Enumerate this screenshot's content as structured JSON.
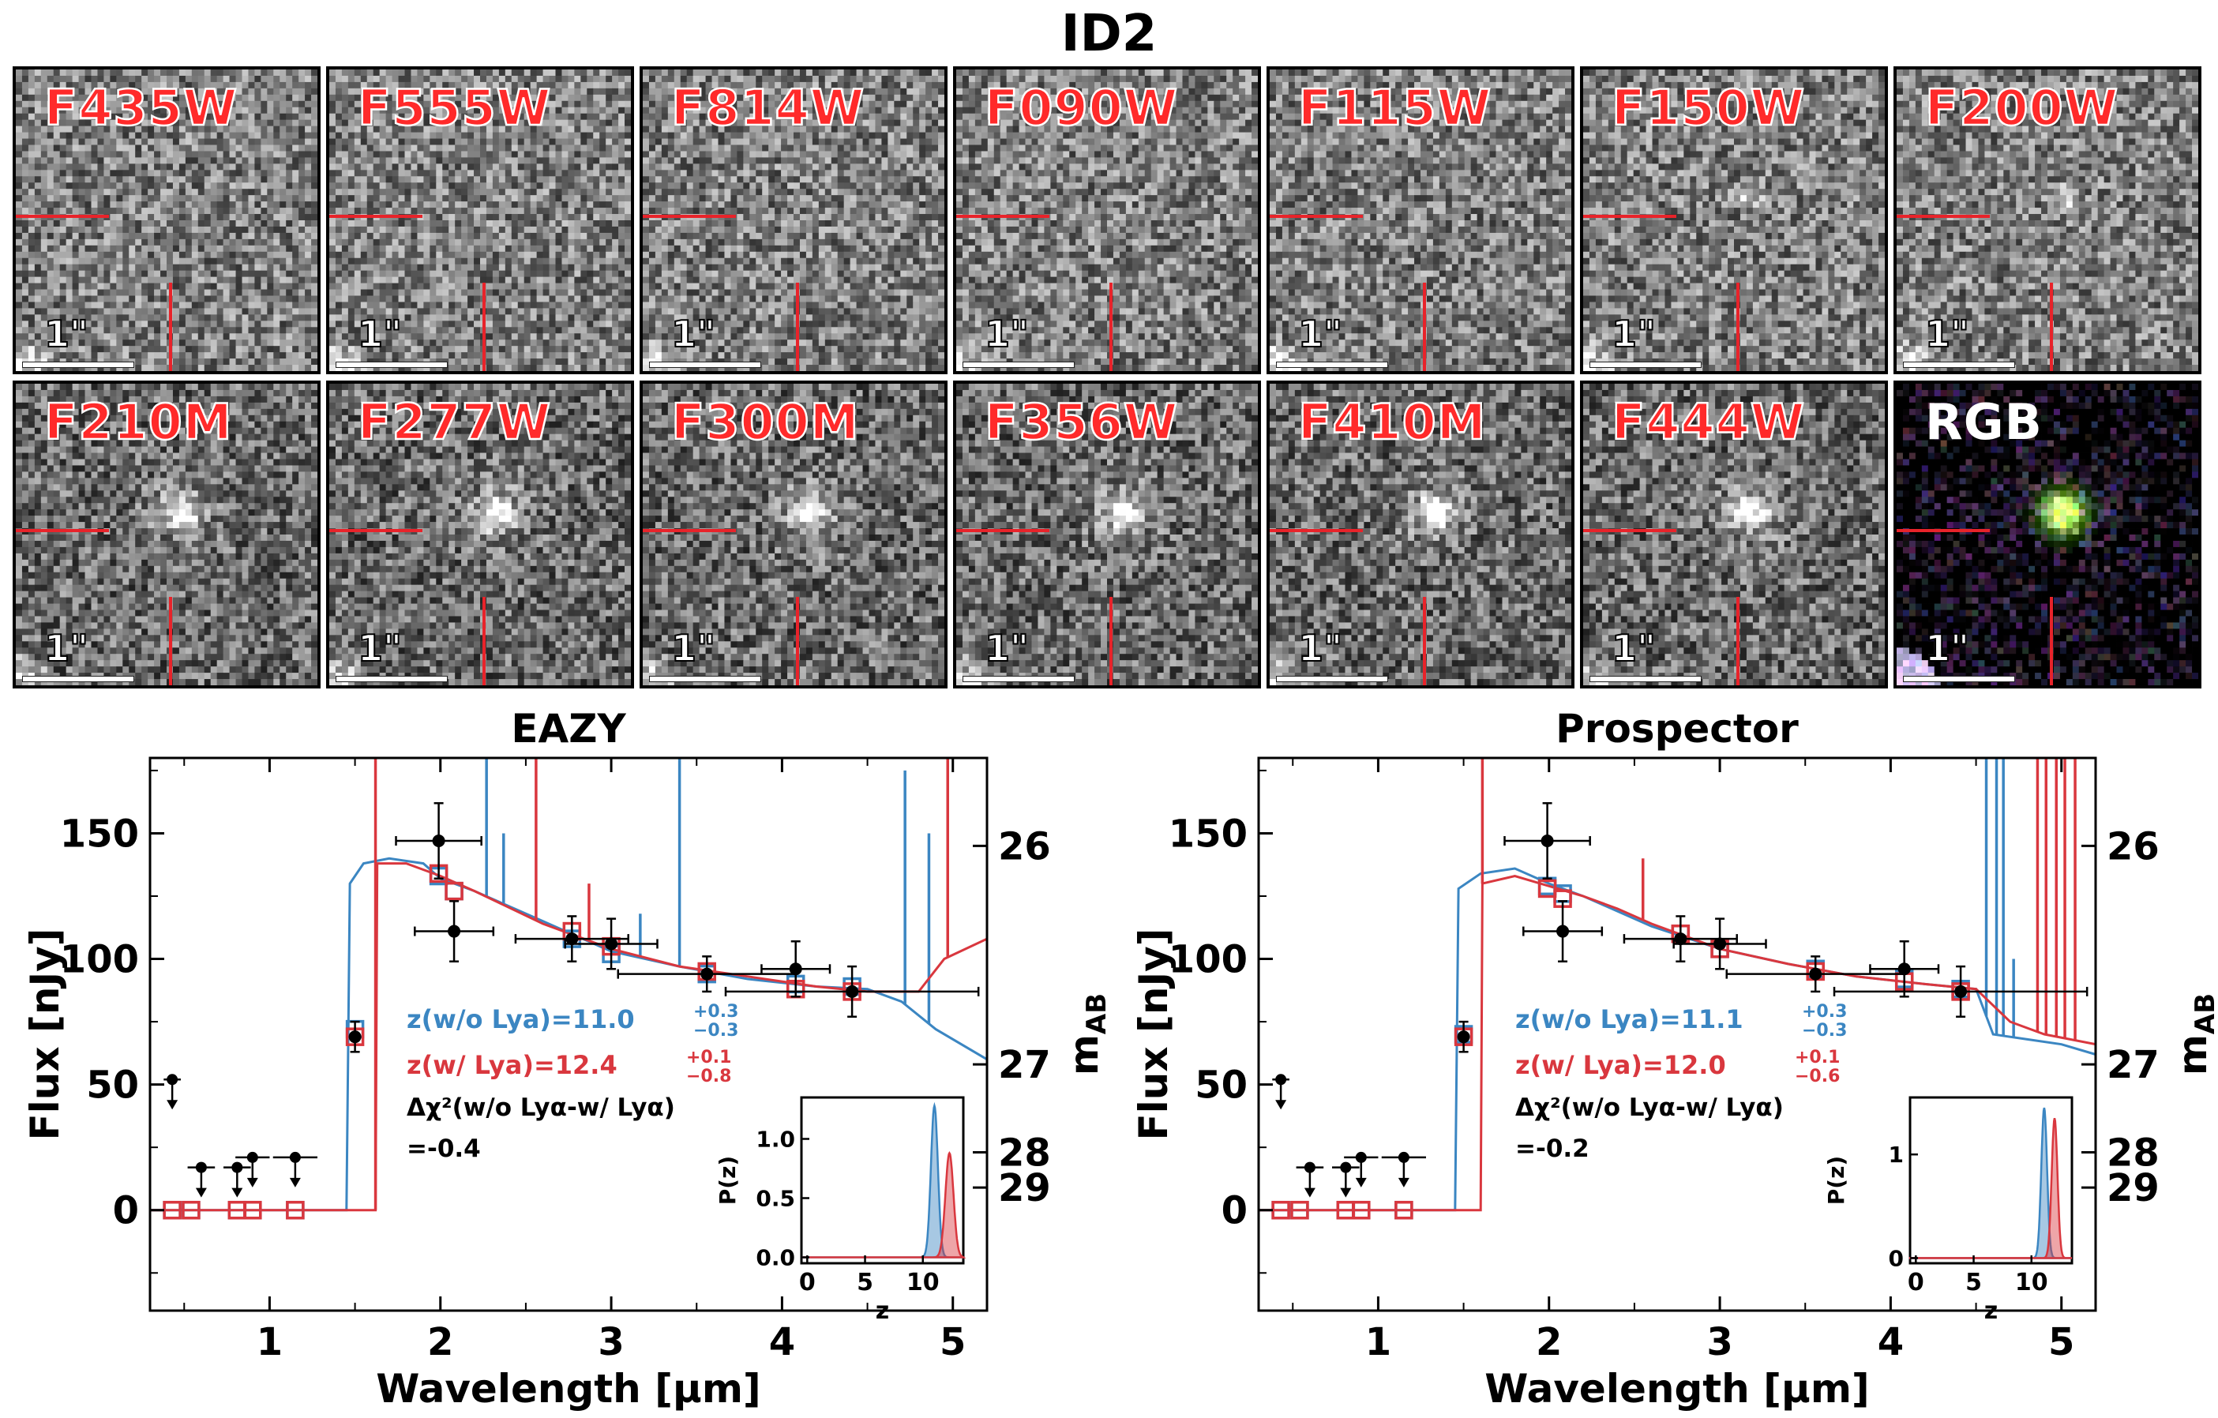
{
  "figure_title": "ID2",
  "stamps": {
    "filters": [
      "F435W",
      "F555W",
      "F814W",
      "F090W",
      "F115W",
      "F150W",
      "F200W",
      "F210M",
      "F277W",
      "F300M",
      "F356W",
      "F410M",
      "F444W",
      "RGB"
    ],
    "scale_label": "1\""
  },
  "colors": {
    "blue": "#3b86c2",
    "red": "#d9373e",
    "black": "#000000",
    "crosshair": "#e8232a"
  },
  "chart_data": [
    {
      "type": "scatter",
      "panel": "EAZY",
      "title": "EAZY",
      "xlabel": "Wavelength [μm]",
      "ylabel": "Flux [nJy]",
      "y2label": "m_AB",
      "xlim": [
        0.3,
        5.2
      ],
      "ylim": [
        -40,
        180
      ],
      "xticks": [
        1,
        2,
        3,
        4,
        5
      ],
      "yticks": [
        0,
        50,
        100,
        150
      ],
      "y2ticks": [
        {
          "label": "26",
          "flux": 145
        },
        {
          "label": "27",
          "flux": 58
        },
        {
          "label": "28",
          "flux": 23
        },
        {
          "label": "29",
          "flux": 9
        }
      ],
      "observed_detections": [
        {
          "x": 1.5,
          "y": 69,
          "xerr": 0.0,
          "yerr": 6
        },
        {
          "x": 1.99,
          "y": 147,
          "xerr": 0.25,
          "yerr": 15
        },
        {
          "x": 2.08,
          "y": 111,
          "xerr": 0.23,
          "yerr": 12
        },
        {
          "x": 2.77,
          "y": 108,
          "xerr": 0.33,
          "yerr": 9
        },
        {
          "x": 3.0,
          "y": 106,
          "xerr": 0.27,
          "yerr": 10
        },
        {
          "x": 3.56,
          "y": 94,
          "xerr": 0.52,
          "yerr": 7
        },
        {
          "x": 4.08,
          "y": 96,
          "xerr": 0.2,
          "yerr": 11
        },
        {
          "x": 4.41,
          "y": 87,
          "xerr": 0.74,
          "yerr": 10
        }
      ],
      "upper_limits": [
        {
          "x": 0.43,
          "y": 52,
          "xerr": 0.05
        },
        {
          "x": 0.6,
          "y": 17,
          "xerr": 0.08
        },
        {
          "x": 0.81,
          "y": 17,
          "xerr": 0.08
        },
        {
          "x": 0.9,
          "y": 21,
          "xerr": 0.1
        },
        {
          "x": 1.15,
          "y": 21,
          "xerr": 0.13
        }
      ],
      "model_photometry_blue": [
        {
          "x": 0.43,
          "y": 0
        },
        {
          "x": 0.54,
          "y": 0
        },
        {
          "x": 0.81,
          "y": 0
        },
        {
          "x": 0.9,
          "y": 0
        },
        {
          "x": 1.15,
          "y": 0
        },
        {
          "x": 1.5,
          "y": 72
        },
        {
          "x": 1.99,
          "y": 133
        },
        {
          "x": 2.08,
          "y": 127
        },
        {
          "x": 2.77,
          "y": 108
        },
        {
          "x": 3.0,
          "y": 102
        },
        {
          "x": 3.56,
          "y": 94
        },
        {
          "x": 4.08,
          "y": 90
        },
        {
          "x": 4.41,
          "y": 89
        }
      ],
      "model_photometry_red": [
        {
          "x": 0.43,
          "y": 0
        },
        {
          "x": 0.54,
          "y": 0
        },
        {
          "x": 0.81,
          "y": 0
        },
        {
          "x": 0.9,
          "y": 0
        },
        {
          "x": 1.15,
          "y": 0
        },
        {
          "x": 1.5,
          "y": 69
        },
        {
          "x": 1.99,
          "y": 134
        },
        {
          "x": 2.08,
          "y": 127
        },
        {
          "x": 2.77,
          "y": 111
        },
        {
          "x": 3.0,
          "y": 105
        },
        {
          "x": 3.56,
          "y": 95
        },
        {
          "x": 4.08,
          "y": 88
        },
        {
          "x": 4.41,
          "y": 87
        }
      ],
      "sed_blue": [
        [
          0.3,
          0
        ],
        [
          1.45,
          0
        ],
        [
          1.47,
          130
        ],
        [
          1.55,
          138
        ],
        [
          1.7,
          140
        ],
        [
          1.9,
          138
        ],
        [
          2.0,
          132
        ],
        [
          2.2,
          127
        ],
        [
          2.6,
          115
        ],
        [
          3.0,
          103
        ],
        [
          3.4,
          97
        ],
        [
          3.8,
          92
        ],
        [
          4.2,
          89
        ],
        [
          4.5,
          88
        ],
        [
          4.7,
          83
        ],
        [
          4.9,
          72
        ],
        [
          5.2,
          60
        ]
      ],
      "sed_blue_spikes": [
        {
          "x": 2.27,
          "h": 180
        },
        {
          "x": 2.37,
          "h": 150
        },
        {
          "x": 3.17,
          "h": 118
        },
        {
          "x": 3.4,
          "h": 180
        },
        {
          "x": 4.72,
          "h": 175
        },
        {
          "x": 4.86,
          "h": 150
        }
      ],
      "sed_red": [
        [
          0.3,
          0
        ],
        [
          1.62,
          0
        ],
        [
          1.63,
          138
        ],
        [
          1.8,
          138
        ],
        [
          2.0,
          133
        ],
        [
          2.2,
          127
        ],
        [
          2.6,
          114
        ],
        [
          3.0,
          104
        ],
        [
          3.4,
          97
        ],
        [
          3.8,
          93
        ],
        [
          4.2,
          89
        ],
        [
          4.5,
          87
        ],
        [
          4.8,
          87
        ],
        [
          4.95,
          100
        ],
        [
          5.2,
          108
        ]
      ],
      "sed_red_spikes": [
        {
          "x": 1.62,
          "h": 180
        },
        {
          "x": 2.56,
          "h": 180
        },
        {
          "x": 2.87,
          "h": 130
        },
        {
          "x": 4.97,
          "h": 180
        }
      ],
      "annotations": {
        "z_blue": "z(w/o Lya)=11.0",
        "z_blue_err_up": "+0.3",
        "z_blue_err_lo": "−0.3",
        "z_red": "z(w/ Lya)=12.4",
        "z_red_err_up": "+0.1",
        "z_red_err_lo": "−0.8",
        "dchi_label": "Δχ²(w/o Lyα-w/ Lyα)",
        "dchi_value": "=-0.4"
      },
      "inset": {
        "xlabel": "z",
        "ylabel": "P(z)",
        "xlim": [
          -0.5,
          13.5
        ],
        "ylim": [
          -0.05,
          1.35
        ],
        "xticks": [
          0,
          5,
          10
        ],
        "yticks": [
          0.0,
          0.5,
          1.0
        ],
        "ytick_labels": [
          "0.0",
          "0.5",
          "1.0"
        ],
        "pz_blue": {
          "mu": 11.0,
          "sigma": 0.3,
          "peak": 1.28
        },
        "pz_red": {
          "mu": 12.3,
          "sigma": 0.35,
          "peak": 0.88
        }
      }
    },
    {
      "type": "scatter",
      "panel": "Prospector",
      "title": "Prospector",
      "xlabel": "Wavelength [μm]",
      "ylabel": "Flux [nJy]",
      "y2label": "m_AB",
      "xlim": [
        0.3,
        5.2
      ],
      "ylim": [
        -40,
        180
      ],
      "xticks": [
        1,
        2,
        3,
        4,
        5
      ],
      "yticks": [
        0,
        50,
        100,
        150
      ],
      "y2ticks": [
        {
          "label": "26",
          "flux": 145
        },
        {
          "label": "27",
          "flux": 58
        },
        {
          "label": "28",
          "flux": 23
        },
        {
          "label": "29",
          "flux": 9
        }
      ],
      "observed_detections": [
        {
          "x": 1.5,
          "y": 69,
          "xerr": 0.0,
          "yerr": 6
        },
        {
          "x": 1.99,
          "y": 147,
          "xerr": 0.25,
          "yerr": 15
        },
        {
          "x": 2.08,
          "y": 111,
          "xerr": 0.23,
          "yerr": 12
        },
        {
          "x": 2.77,
          "y": 108,
          "xerr": 0.33,
          "yerr": 9
        },
        {
          "x": 3.0,
          "y": 106,
          "xerr": 0.27,
          "yerr": 10
        },
        {
          "x": 3.56,
          "y": 94,
          "xerr": 0.52,
          "yerr": 7
        },
        {
          "x": 4.08,
          "y": 96,
          "xerr": 0.2,
          "yerr": 11
        },
        {
          "x": 4.41,
          "y": 87,
          "xerr": 0.74,
          "yerr": 10
        }
      ],
      "upper_limits": [
        {
          "x": 0.43,
          "y": 52,
          "xerr": 0.05
        },
        {
          "x": 0.6,
          "y": 17,
          "xerr": 0.08
        },
        {
          "x": 0.81,
          "y": 17,
          "xerr": 0.08
        },
        {
          "x": 0.9,
          "y": 21,
          "xerr": 0.1
        },
        {
          "x": 1.15,
          "y": 21,
          "xerr": 0.13
        }
      ],
      "model_photometry_blue": [
        {
          "x": 0.43,
          "y": 0
        },
        {
          "x": 0.54,
          "y": 0
        },
        {
          "x": 0.81,
          "y": 0
        },
        {
          "x": 0.9,
          "y": 0
        },
        {
          "x": 1.15,
          "y": 0
        },
        {
          "x": 1.5,
          "y": 70
        },
        {
          "x": 1.99,
          "y": 129
        },
        {
          "x": 2.08,
          "y": 126
        },
        {
          "x": 2.77,
          "y": 110
        },
        {
          "x": 3.0,
          "y": 104
        },
        {
          "x": 3.56,
          "y": 96
        },
        {
          "x": 4.08,
          "y": 92
        },
        {
          "x": 4.41,
          "y": 88
        }
      ],
      "model_photometry_red": [
        {
          "x": 0.43,
          "y": 0
        },
        {
          "x": 0.54,
          "y": 0
        },
        {
          "x": 0.81,
          "y": 0
        },
        {
          "x": 0.9,
          "y": 0
        },
        {
          "x": 1.15,
          "y": 0
        },
        {
          "x": 1.5,
          "y": 69
        },
        {
          "x": 1.99,
          "y": 128
        },
        {
          "x": 2.08,
          "y": 124
        },
        {
          "x": 2.77,
          "y": 110
        },
        {
          "x": 3.0,
          "y": 104
        },
        {
          "x": 3.56,
          "y": 95
        },
        {
          "x": 4.08,
          "y": 91
        },
        {
          "x": 4.41,
          "y": 87
        }
      ],
      "sed_blue": [
        [
          0.3,
          0
        ],
        [
          1.45,
          0
        ],
        [
          1.47,
          128
        ],
        [
          1.6,
          134
        ],
        [
          1.8,
          136
        ],
        [
          2.0,
          130
        ],
        [
          2.2,
          125
        ],
        [
          2.6,
          113
        ],
        [
          3.0,
          104
        ],
        [
          3.4,
          98
        ],
        [
          3.8,
          93
        ],
        [
          4.2,
          90
        ],
        [
          4.5,
          88
        ],
        [
          4.6,
          70
        ],
        [
          4.8,
          68
        ],
        [
          5.0,
          66
        ],
        [
          5.2,
          62
        ]
      ],
      "sed_blue_spikes": [
        {
          "x": 4.56,
          "h": 180
        },
        {
          "x": 4.62,
          "h": 180
        },
        {
          "x": 4.66,
          "h": 180
        },
        {
          "x": 4.72,
          "h": 100
        }
      ],
      "sed_red": [
        [
          0.3,
          0
        ],
        [
          1.6,
          0
        ],
        [
          1.61,
          130
        ],
        [
          1.8,
          133
        ],
        [
          2.0,
          129
        ],
        [
          2.2,
          125
        ],
        [
          2.4,
          120
        ],
        [
          2.6,
          114
        ],
        [
          3.0,
          104
        ],
        [
          3.4,
          98
        ],
        [
          3.8,
          93
        ],
        [
          4.2,
          90
        ],
        [
          4.5,
          88
        ],
        [
          4.7,
          75
        ],
        [
          4.9,
          70
        ],
        [
          5.2,
          66
        ]
      ],
      "sed_red_spikes": [
        {
          "x": 1.61,
          "h": 180
        },
        {
          "x": 2.55,
          "h": 140
        },
        {
          "x": 4.86,
          "h": 180
        },
        {
          "x": 4.91,
          "h": 180
        },
        {
          "x": 4.97,
          "h": 180
        },
        {
          "x": 5.02,
          "h": 180
        },
        {
          "x": 5.08,
          "h": 180
        }
      ],
      "annotations": {
        "z_blue": "z(w/o Lya)=11.1",
        "z_blue_err_up": "+0.3",
        "z_blue_err_lo": "−0.3",
        "z_red": "z(w/ Lya)=12.0",
        "z_red_err_up": "+0.1",
        "z_red_err_lo": "−0.6",
        "dchi_label": "Δχ²(w/o Lyα-w/ Lyα)",
        "dchi_value": "=-0.2"
      },
      "inset": {
        "xlabel": "z",
        "ylabel": "P(z)",
        "xlim": [
          -0.5,
          13.5
        ],
        "ylim": [
          -0.05,
          1.55
        ],
        "xticks": [
          0,
          5,
          10
        ],
        "yticks": [
          0,
          1
        ],
        "ytick_labels": [
          "0",
          "1"
        ],
        "pz_blue": {
          "mu": 11.1,
          "sigma": 0.25,
          "peak": 1.45
        },
        "pz_red": {
          "mu": 12.0,
          "sigma": 0.25,
          "peak": 1.35
        }
      }
    }
  ]
}
